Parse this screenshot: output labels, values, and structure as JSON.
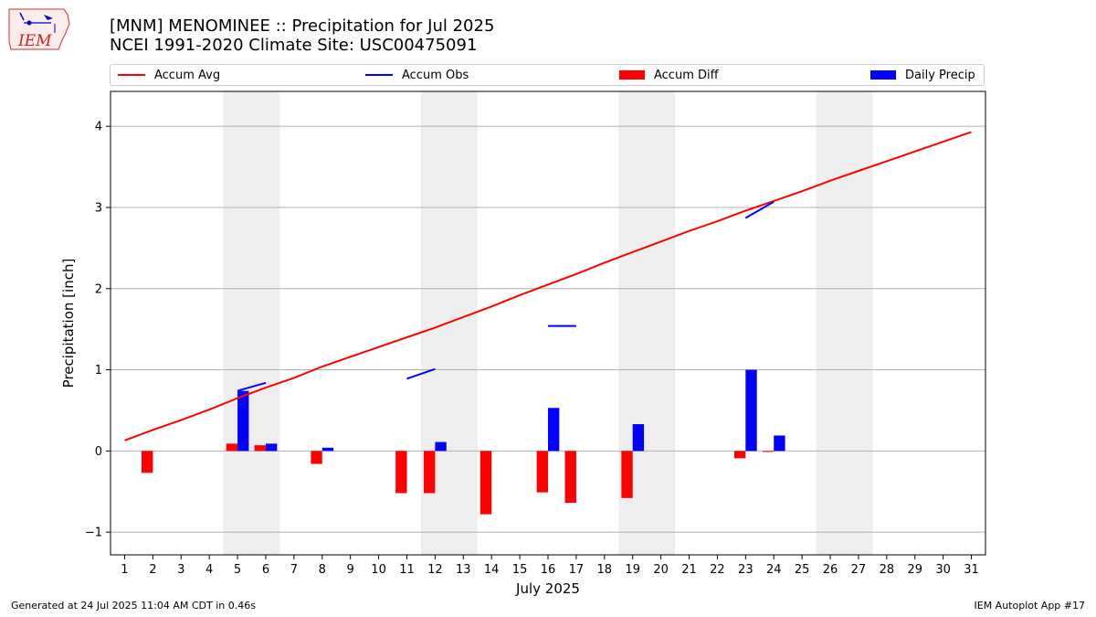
{
  "header": {
    "title_line1": "[MNM] MENOMINEE :: Precipitation for Jul 2025",
    "title_line2": "NCEI 1991-2020 Climate Site: USC00475091"
  },
  "logo": {
    "text": "IEM",
    "icon": "iowa-state-weather-icon"
  },
  "footer": {
    "left": "Generated at 24 Jul 2025 11:04 AM CDT in 0.46s",
    "right": "IEM Autoplot App #17"
  },
  "colors": {
    "avg": "#ff0000",
    "obs": "#0000ff",
    "diff": "#ff0000",
    "daily": "#0000ff",
    "weekend_shade": "#eeeeee",
    "grid": "#b0b0b0"
  },
  "chart_data": {
    "type": "bar",
    "xlabel": "July 2025",
    "ylabel": "Precipitation [inch]",
    "ylim": [
      -1.28,
      4.43
    ],
    "xlim": [
      0.5,
      31.5
    ],
    "yticks": [
      -1,
      0,
      1,
      2,
      3,
      4
    ],
    "ytick_labels": [
      "−1",
      "0",
      "1",
      "2",
      "3",
      "4"
    ],
    "x": [
      1,
      2,
      3,
      4,
      5,
      6,
      7,
      8,
      9,
      10,
      11,
      12,
      13,
      14,
      15,
      16,
      17,
      18,
      19,
      20,
      21,
      22,
      23,
      24,
      25,
      26,
      27,
      28,
      29,
      30,
      31
    ],
    "xtick_labels": [
      "1",
      "2",
      "3",
      "4",
      "5",
      "6",
      "7",
      "8",
      "9",
      "10",
      "11",
      "12",
      "13",
      "14",
      "15",
      "16",
      "17",
      "18",
      "19",
      "20",
      "21",
      "22",
      "23",
      "24",
      "25",
      "26",
      "27",
      "28",
      "29",
      "30",
      "31"
    ],
    "grid": "horizontal",
    "legend_position": "top",
    "weekend_ranges": [
      [
        5,
        6
      ],
      [
        12,
        13
      ],
      [
        19,
        20
      ],
      [
        26,
        27
      ]
    ],
    "series": [
      {
        "name": "Accum Avg",
        "kind": "line",
        "color": "#ff0000",
        "values": [
          0.13,
          0.26,
          0.38,
          0.51,
          0.65,
          0.78,
          0.9,
          1.04,
          1.16,
          1.28,
          1.4,
          1.52,
          1.65,
          1.78,
          1.92,
          2.05,
          2.18,
          2.32,
          2.45,
          2.58,
          2.71,
          2.83,
          2.96,
          3.08,
          3.2,
          3.33,
          3.45,
          3.57,
          3.69,
          3.81,
          3.93
        ]
      },
      {
        "name": "Accum Obs",
        "kind": "line",
        "color": "#0000ff",
        "values": [
          null,
          null,
          null,
          null,
          0.74,
          0.84,
          null,
          null,
          null,
          null,
          0.89,
          1.01,
          null,
          null,
          null,
          1.54,
          1.54,
          null,
          null,
          null,
          null,
          null,
          2.87,
          3.07,
          null,
          null,
          null,
          null,
          null,
          null,
          null
        ]
      },
      {
        "name": "Accum Diff",
        "kind": "bar",
        "color": "#ff0000",
        "values": [
          null,
          -0.27,
          null,
          null,
          0.09,
          0.07,
          null,
          -0.16,
          null,
          null,
          -0.52,
          -0.52,
          null,
          -0.78,
          null,
          -0.51,
          -0.64,
          null,
          -0.58,
          null,
          null,
          null,
          -0.09,
          -0.01,
          null,
          null,
          null,
          null,
          null,
          null,
          null
        ]
      },
      {
        "name": "Daily Precip",
        "kind": "bar",
        "color": "#0000ff",
        "values": [
          null,
          null,
          null,
          null,
          0.74,
          0.09,
          null,
          0.04,
          null,
          null,
          null,
          0.11,
          null,
          null,
          null,
          0.53,
          null,
          null,
          0.33,
          null,
          null,
          null,
          1.0,
          0.19,
          null,
          null,
          null,
          null,
          null,
          null,
          null
        ]
      }
    ]
  }
}
